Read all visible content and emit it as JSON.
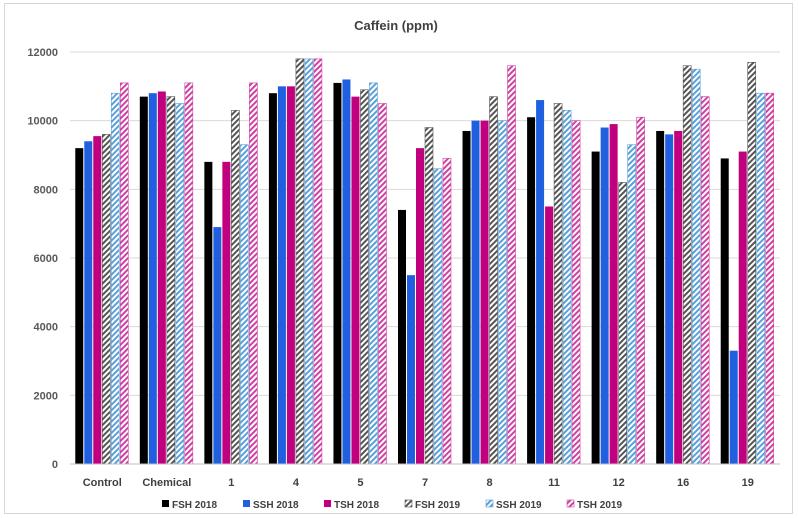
{
  "chart_data": {
    "type": "bar",
    "title": "Caffein (ppm)",
    "categories": [
      "Control",
      "Chemical",
      "1",
      "4",
      "5",
      "7",
      "8",
      "11",
      "12",
      "16",
      "19"
    ],
    "ylim": [
      0,
      12000
    ],
    "yticks": [
      0,
      2000,
      4000,
      6000,
      8000,
      10000,
      12000
    ],
    "grid": true,
    "legend_position": "bottom",
    "series": [
      {
        "name": "FSH 2018",
        "color": "#000000",
        "pattern": "solid",
        "values": [
          9200,
          10700,
          8800,
          10800,
          11100,
          7400,
          9700,
          10100,
          9100,
          9700,
          8900
        ]
      },
      {
        "name": "SSH 2018",
        "color": "#1f5fe0",
        "pattern": "solid",
        "values": [
          9400,
          10800,
          6900,
          11000,
          11200,
          5500,
          10000,
          10600,
          9800,
          9600,
          3300
        ]
      },
      {
        "name": "TSH 2018",
        "color": "#c0007e",
        "pattern": "solid",
        "values": [
          9550,
          10850,
          8800,
          11000,
          10700,
          9200,
          10000,
          7500,
          9900,
          9700,
          9100
        ]
      },
      {
        "name": "FSH 2019",
        "color": "#555555",
        "pattern": "hatch",
        "values": [
          9600,
          10700,
          10300,
          11800,
          10900,
          9800,
          10700,
          10500,
          8200,
          11600,
          11700
        ]
      },
      {
        "name": "SSH 2019",
        "color": "#5aa0d8",
        "pattern": "hatch",
        "values": [
          10800,
          10500,
          9300,
          11800,
          11100,
          8600,
          10000,
          10300,
          9300,
          11500,
          10800
        ]
      },
      {
        "name": "TSH 2019",
        "color": "#d040a0",
        "pattern": "hatch",
        "values": [
          11100,
          11100,
          11100,
          11800,
          10500,
          8900,
          11600,
          10000,
          10100,
          10700,
          10800
        ]
      }
    ]
  }
}
